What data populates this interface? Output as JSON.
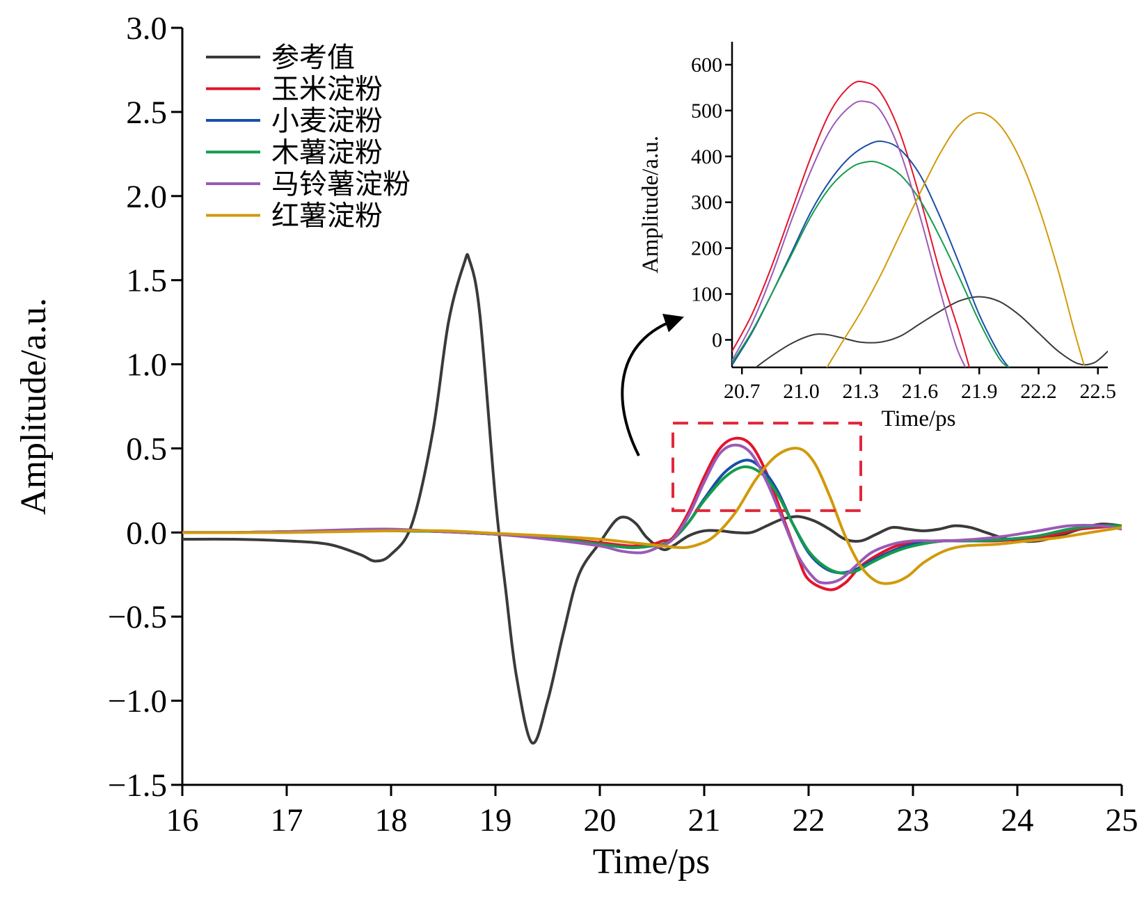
{
  "chart_data": [
    {
      "type": "line",
      "xlabel": "Time/ps",
      "ylabel": "Amplitude/a.u.",
      "xlim": [
        16,
        25
      ],
      "ylim": [
        -1.5,
        3.0
      ],
      "xticks": [
        "16",
        "17",
        "18",
        "19",
        "20",
        "21",
        "22",
        "23",
        "24",
        "25"
      ],
      "yticks": [
        "3.0",
        "2.5",
        "2.0",
        "1.5",
        "1.0",
        "0.5",
        "0.0",
        "−0.5",
        "−1.0",
        "−1.5"
      ],
      "grid": false,
      "legend_position": "top-left",
      "zoom_box": {
        "x": [
          20.7,
          22.5
        ],
        "y": [
          0.13,
          0.65
        ],
        "color": "#e0283a",
        "style": "dashed"
      },
      "series": [
        {
          "name": "参考值",
          "color": "#3a3a3a",
          "x": [
            16.0,
            16.5,
            17.0,
            17.4,
            17.7,
            17.85,
            18.0,
            18.2,
            18.4,
            18.55,
            18.7,
            18.75,
            18.85,
            19.0,
            19.1,
            19.2,
            19.35,
            19.5,
            19.65,
            19.8,
            20.0,
            20.15,
            20.25,
            20.35,
            20.45,
            20.6,
            20.7,
            20.85,
            21.0,
            21.15,
            21.3,
            21.45,
            21.6,
            21.75,
            21.9,
            22.05,
            22.2,
            22.35,
            22.5,
            22.65,
            22.8,
            22.95,
            23.1,
            23.25,
            23.4,
            23.55,
            23.7,
            23.85,
            24.0,
            24.2,
            24.4,
            24.6,
            24.8,
            25.0
          ],
          "y": [
            -0.04,
            -0.04,
            -0.05,
            -0.07,
            -0.13,
            -0.17,
            -0.13,
            0.05,
            0.6,
            1.25,
            1.6,
            1.62,
            1.3,
            0.2,
            -0.35,
            -0.85,
            -1.25,
            -1.0,
            -0.6,
            -0.25,
            -0.06,
            0.07,
            0.09,
            0.05,
            -0.03,
            -0.1,
            -0.08,
            -0.02,
            0.01,
            0.01,
            0.0,
            0.0,
            0.04,
            0.08,
            0.095,
            0.07,
            0.02,
            -0.04,
            -0.05,
            -0.01,
            0.03,
            0.02,
            0.01,
            0.02,
            0.04,
            0.03,
            0.0,
            -0.03,
            -0.05,
            -0.05,
            -0.02,
            0.02,
            0.05,
            0.04
          ]
        },
        {
          "name": "玉米淀粉",
          "color": "#e3142c",
          "x": [
            16.0,
            16.5,
            17.0,
            17.5,
            18.0,
            18.5,
            19.0,
            19.5,
            20.0,
            20.3,
            20.5,
            20.6,
            20.7,
            20.85,
            21.0,
            21.15,
            21.3,
            21.45,
            21.6,
            21.75,
            21.9,
            22.0,
            22.2,
            22.35,
            22.5,
            22.7,
            22.9,
            23.2,
            23.5,
            23.8,
            24.0,
            24.3,
            24.6,
            25.0
          ],
          "y": [
            0.0,
            0.0,
            0.005,
            0.01,
            0.01,
            0.005,
            -0.01,
            -0.03,
            -0.06,
            -0.08,
            -0.07,
            -0.05,
            -0.03,
            0.12,
            0.33,
            0.5,
            0.56,
            0.52,
            0.35,
            0.1,
            -0.15,
            -0.28,
            -0.34,
            -0.3,
            -0.2,
            -0.12,
            -0.07,
            -0.05,
            -0.05,
            -0.05,
            -0.04,
            -0.02,
            0.02,
            0.04
          ]
        },
        {
          "name": "小麦淀粉",
          "color": "#1a4ea8",
          "x": [
            16.0,
            16.5,
            17.0,
            17.5,
            18.0,
            18.5,
            19.0,
            19.5,
            20.0,
            20.3,
            20.5,
            20.6,
            20.7,
            20.85,
            21.0,
            21.2,
            21.4,
            21.55,
            21.7,
            21.85,
            22.0,
            22.15,
            22.3,
            22.45,
            22.6,
            22.8,
            23.0,
            23.3,
            23.6,
            23.9,
            24.2,
            24.5,
            24.8,
            25.0
          ],
          "y": [
            0.0,
            0.0,
            0.005,
            0.01,
            0.01,
            0.005,
            -0.01,
            -0.03,
            -0.07,
            -0.09,
            -0.08,
            -0.07,
            -0.04,
            0.06,
            0.2,
            0.36,
            0.43,
            0.38,
            0.25,
            0.05,
            -0.12,
            -0.21,
            -0.24,
            -0.22,
            -0.17,
            -0.11,
            -0.07,
            -0.05,
            -0.05,
            -0.04,
            -0.02,
            0.02,
            0.04,
            0.04
          ]
        },
        {
          "name": "木薯淀粉",
          "color": "#149c4e",
          "x": [
            16.0,
            16.5,
            17.0,
            17.5,
            18.0,
            18.5,
            19.0,
            19.5,
            20.0,
            20.3,
            20.5,
            20.6,
            20.7,
            20.85,
            21.0,
            21.2,
            21.38,
            21.55,
            21.7,
            21.85,
            22.0,
            22.15,
            22.3,
            22.45,
            22.6,
            22.8,
            23.0,
            23.3,
            23.6,
            23.9,
            24.2,
            24.5,
            24.8,
            25.0
          ],
          "y": [
            0.0,
            0.0,
            0.005,
            0.01,
            0.01,
            0.005,
            -0.01,
            -0.03,
            -0.07,
            -0.09,
            -0.08,
            -0.07,
            -0.04,
            0.06,
            0.19,
            0.33,
            0.39,
            0.35,
            0.23,
            0.05,
            -0.11,
            -0.2,
            -0.24,
            -0.23,
            -0.18,
            -0.12,
            -0.08,
            -0.05,
            -0.05,
            -0.04,
            -0.02,
            0.02,
            0.04,
            0.04
          ]
        },
        {
          "name": "马铃薯淀粉",
          "color": "#9b59b6",
          "x": [
            16.0,
            16.5,
            17.0,
            17.5,
            18.0,
            18.5,
            19.0,
            19.5,
            20.0,
            20.2,
            20.4,
            20.55,
            20.7,
            20.85,
            21.0,
            21.15,
            21.3,
            21.45,
            21.6,
            21.75,
            21.9,
            22.05,
            22.15,
            22.3,
            22.45,
            22.6,
            22.8,
            23.0,
            23.3,
            23.6,
            23.9,
            24.2,
            24.5,
            24.8,
            25.0
          ],
          "y": [
            0.0,
            0.0,
            0.005,
            0.015,
            0.02,
            0.005,
            -0.01,
            -0.04,
            -0.08,
            -0.11,
            -0.12,
            -0.09,
            -0.04,
            0.1,
            0.3,
            0.47,
            0.52,
            0.47,
            0.3,
            0.08,
            -0.14,
            -0.27,
            -0.3,
            -0.28,
            -0.2,
            -0.12,
            -0.07,
            -0.05,
            -0.05,
            -0.04,
            -0.02,
            0.01,
            0.04,
            0.04,
            0.02
          ]
        },
        {
          "name": "红薯淀粉",
          "color": "#d19a0a",
          "x": [
            16.0,
            16.5,
            17.0,
            17.5,
            18.0,
            18.5,
            19.0,
            19.5,
            20.0,
            20.3,
            20.6,
            20.8,
            20.95,
            21.1,
            21.3,
            21.5,
            21.7,
            21.9,
            22.05,
            22.2,
            22.35,
            22.5,
            22.65,
            22.8,
            22.95,
            23.1,
            23.3,
            23.5,
            23.8,
            24.1,
            24.4,
            24.7,
            25.0
          ],
          "y": [
            0.0,
            0.0,
            0.0,
            0.005,
            0.01,
            0.01,
            -0.005,
            -0.02,
            -0.04,
            -0.06,
            -0.08,
            -0.09,
            -0.07,
            -0.02,
            0.12,
            0.32,
            0.46,
            0.5,
            0.42,
            0.22,
            -0.02,
            -0.2,
            -0.29,
            -0.3,
            -0.26,
            -0.18,
            -0.11,
            -0.08,
            -0.07,
            -0.05,
            -0.03,
            0.0,
            0.03
          ]
        }
      ]
    },
    {
      "type": "line",
      "xlabel": "Time/ps",
      "ylabel": "Amplitude/a.u.",
      "xlim": [
        20.65,
        22.55
      ],
      "ylim": [
        -60,
        650
      ],
      "xticks": [
        "20.7",
        "21.0",
        "21.3",
        "21.6",
        "21.9",
        "22.2",
        "22.5"
      ],
      "yticks": [
        "600",
        "500",
        "400",
        "300",
        "200",
        "100",
        "0"
      ],
      "grid": false,
      "legend_position": "none",
      "series": [
        {
          "name": "参考值",
          "color": "#3a3a3a",
          "x": [
            20.77,
            20.85,
            20.95,
            21.05,
            21.12,
            21.2,
            21.3,
            21.4,
            21.5,
            21.6,
            21.7,
            21.8,
            21.9,
            22.0,
            22.1,
            22.2,
            22.3,
            22.4,
            22.48,
            22.55
          ],
          "y": [
            -60,
            -35,
            -8,
            10,
            12,
            5,
            -5,
            -5,
            8,
            35,
            62,
            85,
            94,
            84,
            55,
            15,
            -25,
            -52,
            -50,
            -25
          ]
        },
        {
          "name": "玉米淀粉",
          "color": "#e3142c",
          "x": [
            20.65,
            20.75,
            20.85,
            20.95,
            21.05,
            21.15,
            21.25,
            21.32,
            21.4,
            21.5,
            21.6,
            21.7,
            21.8,
            21.85
          ],
          "y": [
            -25,
            55,
            160,
            280,
            400,
            500,
            555,
            562,
            540,
            450,
            310,
            150,
            15,
            -60
          ]
        },
        {
          "name": "小麦淀粉",
          "color": "#1a4ea8",
          "x": [
            20.65,
            20.75,
            20.85,
            20.95,
            21.05,
            21.15,
            21.25,
            21.35,
            21.42,
            21.5,
            21.6,
            21.7,
            21.8,
            21.9,
            22.0,
            22.05
          ],
          "y": [
            -55,
            15,
            100,
            190,
            280,
            350,
            400,
            428,
            432,
            415,
            360,
            270,
            165,
            55,
            -30,
            -60
          ]
        },
        {
          "name": "木薯淀粉",
          "color": "#149c4e",
          "x": [
            20.65,
            20.75,
            20.85,
            20.95,
            21.05,
            21.15,
            21.25,
            21.33,
            21.4,
            21.5,
            21.6,
            21.7,
            21.8,
            21.9,
            22.0,
            22.05
          ],
          "y": [
            -50,
            18,
            100,
            185,
            270,
            335,
            375,
            388,
            385,
            360,
            305,
            225,
            135,
            40,
            -40,
            -60
          ]
        },
        {
          "name": "马铃薯淀粉",
          "color": "#9b59b6",
          "x": [
            20.65,
            20.75,
            20.85,
            20.95,
            21.05,
            21.15,
            21.25,
            21.32,
            21.4,
            21.5,
            21.6,
            21.7,
            21.78,
            21.83
          ],
          "y": [
            -45,
            35,
            140,
            260,
            370,
            460,
            510,
            520,
            500,
            410,
            270,
            110,
            -10,
            -60
          ]
        },
        {
          "name": "红薯淀粉",
          "color": "#d19a0a",
          "x": [
            21.13,
            21.2,
            21.3,
            21.4,
            21.5,
            21.6,
            21.7,
            21.8,
            21.9,
            22.0,
            22.1,
            22.2,
            22.3,
            22.38,
            22.43
          ],
          "y": [
            -60,
            -10,
            60,
            140,
            230,
            320,
            405,
            470,
            495,
            470,
            400,
            290,
            150,
            20,
            -55
          ]
        }
      ]
    }
  ]
}
